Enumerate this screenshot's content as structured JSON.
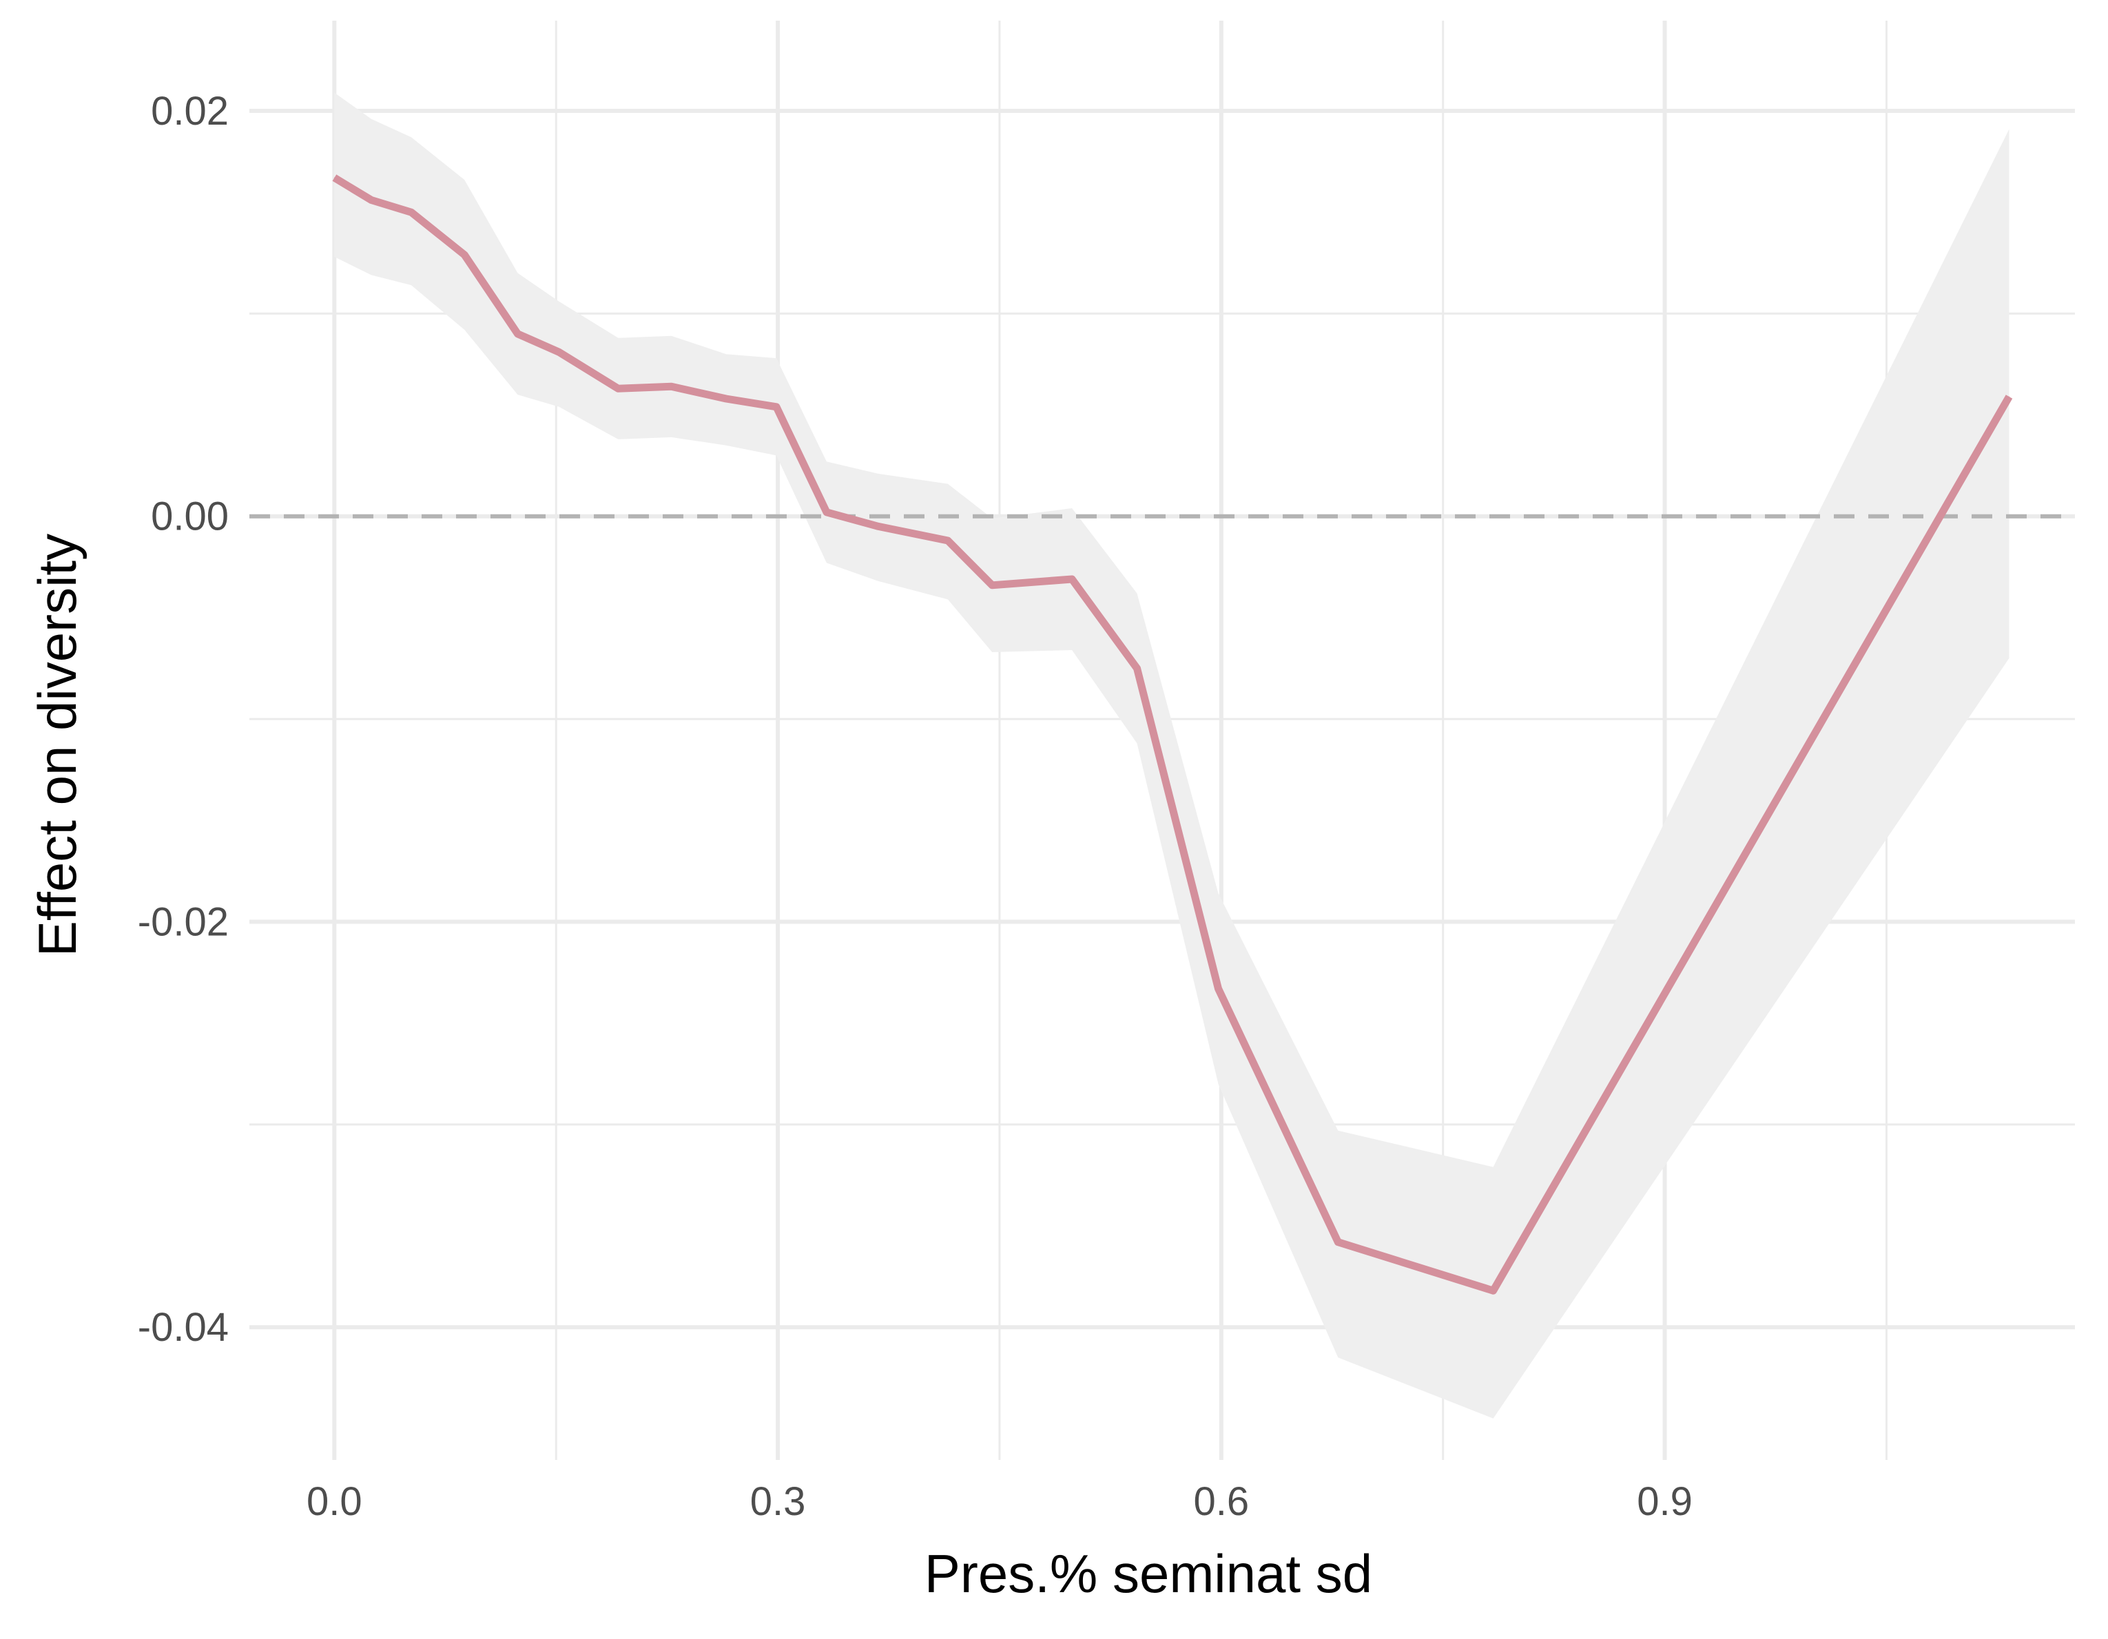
{
  "chart_data": {
    "type": "line",
    "title": "",
    "xlabel": "Pres.% seminat sd",
    "ylabel": "Effect on diversity",
    "xlim": [
      -0.0575,
      1.1775
    ],
    "ylim": [
      -0.04655,
      0.02445
    ],
    "x_ticks": [
      0.0,
      0.3,
      0.6,
      0.9
    ],
    "x_tick_labels": [
      "0.0",
      "0.3",
      "0.6",
      "0.9"
    ],
    "x_minor_ticks": [
      0.15,
      0.45,
      0.75,
      1.05
    ],
    "y_ticks": [
      0.02,
      0.0,
      -0.02,
      -0.04
    ],
    "y_tick_labels": [
      "0.02",
      "0.00",
      "-0.02",
      "-0.04"
    ],
    "y_minor_ticks": [
      0.01,
      -0.01,
      -0.03
    ],
    "reference_line": {
      "y": 0.0,
      "style": "dashed",
      "color": "#b3b3b3"
    },
    "grid": true,
    "colors": {
      "line": "#d4909c",
      "ribbon": "#efefef",
      "grid": "#ebebeb"
    },
    "series": [
      {
        "x": [
          0.0,
          0.025,
          0.052,
          0.088,
          0.124,
          0.152,
          0.192,
          0.228,
          0.265,
          0.299,
          0.333,
          0.368,
          0.415,
          0.445,
          0.499,
          0.543,
          0.598,
          0.679,
          0.784,
          1.133
        ],
        "y": [
          0.0167,
          0.0156,
          0.015,
          0.0129,
          0.009,
          0.0081,
          0.0063,
          0.0064,
          0.0058,
          0.0054,
          0.0002,
          -0.0005,
          -0.0012,
          -0.0034,
          -0.0031,
          -0.0075,
          -0.0233,
          -0.0358,
          -0.0382,
          0.0059
        ],
        "lower": [
          0.0128,
          0.0119,
          0.0114,
          0.0092,
          0.006,
          0.0054,
          0.0038,
          0.0039,
          0.0035,
          0.003,
          -0.0023,
          -0.0032,
          -0.0041,
          -0.0067,
          -0.0066,
          -0.0112,
          -0.028,
          -0.0415,
          -0.0445,
          -0.007
        ],
        "upper": [
          0.0209,
          0.0196,
          0.0187,
          0.0166,
          0.012,
          0.0106,
          0.0088,
          0.0089,
          0.008,
          0.0078,
          0.0027,
          0.0021,
          0.0016,
          -0.0001,
          0.0004,
          -0.0038,
          -0.0186,
          -0.0303,
          -0.0321,
          0.0191
        ]
      }
    ]
  }
}
